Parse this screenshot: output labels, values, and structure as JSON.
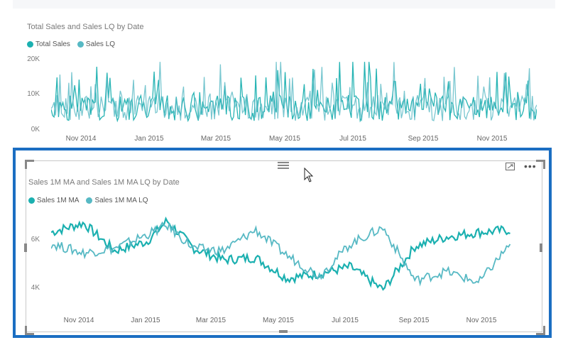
{
  "colors": {
    "series_primary": "#1bb0b0",
    "series_secondary": "#57b9c4",
    "selection_border": "#1b6ec2"
  },
  "top_chart": {
    "title": "Total Sales and Sales LQ by Date",
    "legend": [
      "Total Sales",
      "Sales LQ"
    ],
    "y_ticks": [
      "20K",
      "10K",
      "0K"
    ],
    "x_ticks": [
      "Nov 2014",
      "Jan 2015",
      "Mar 2015",
      "May 2015",
      "Jul 2015",
      "Sep 2015",
      "Nov 2015"
    ]
  },
  "bottom_chart": {
    "title": "Sales 1M MA and Sales 1M MA LQ by Date",
    "legend": [
      "Sales 1M MA",
      "Sales 1M MA LQ"
    ],
    "y_ticks": [
      "6K",
      "4K"
    ],
    "x_ticks": [
      "Nov 2014",
      "Jan 2015",
      "Mar 2015",
      "May 2015",
      "Jul 2015",
      "Sep 2015",
      "Nov 2015"
    ],
    "icons": [
      "focus-mode-icon",
      "more-options-icon",
      "drag-handle-icon"
    ]
  },
  "chart_data": [
    {
      "type": "line",
      "title": "Total Sales and Sales LQ by Date",
      "x_range": [
        "2014-10-01",
        "2015-12-31"
      ],
      "ylim": [
        0,
        20000
      ],
      "y_ticks": [
        0,
        10000,
        20000
      ],
      "series": [
        {
          "name": "Total Sales",
          "pattern": "daily values fluctuating between ~1K and ~19K, mean ~6K"
        },
        {
          "name": "Sales LQ",
          "pattern": "daily values fluctuating between ~1K and ~17K, mean ~6K"
        }
      ],
      "legend_position": "top-left",
      "grid": false
    },
    {
      "type": "line",
      "title": "Sales 1M MA and Sales 1M MA LQ by Date",
      "x_range": [
        "2014-10-01",
        "2015-12-31"
      ],
      "ylim": [
        3600,
        7300
      ],
      "y_ticks": [
        4000,
        6000
      ],
      "series": [
        {
          "name": "Sales 1M MA",
          "x": [
            "2014-10-01",
            "2014-11-01",
            "2014-12-01",
            "2015-01-01",
            "2015-01-20",
            "2015-02-15",
            "2015-03-15",
            "2015-04-15",
            "2015-05-15",
            "2015-06-15",
            "2015-07-15",
            "2015-08-15",
            "2015-09-15",
            "2015-10-15",
            "2015-11-15",
            "2015-12-15"
          ],
          "values": [
            6400,
            6800,
            5600,
            6000,
            6900,
            5700,
            5200,
            5300,
            4400,
            4600,
            4900,
            3900,
            5800,
            6200,
            6400,
            6500
          ]
        },
        {
          "name": "Sales 1M MA LQ",
          "x": [
            "2014-10-01",
            "2014-11-01",
            "2014-12-01",
            "2015-01-01",
            "2015-01-20",
            "2015-02-15",
            "2015-03-15",
            "2015-04-15",
            "2015-05-15",
            "2015-06-15",
            "2015-07-15",
            "2015-08-15",
            "2015-09-15",
            "2015-10-15",
            "2015-11-15",
            "2015-12-15"
          ],
          "values": [
            5900,
            5500,
            5700,
            6300,
            6700,
            5700,
            5600,
            6500,
            5400,
            4500,
            5900,
            6600,
            4300,
            4700,
            4200,
            5900
          ]
        }
      ],
      "legend_position": "top-left",
      "grid": false
    }
  ]
}
